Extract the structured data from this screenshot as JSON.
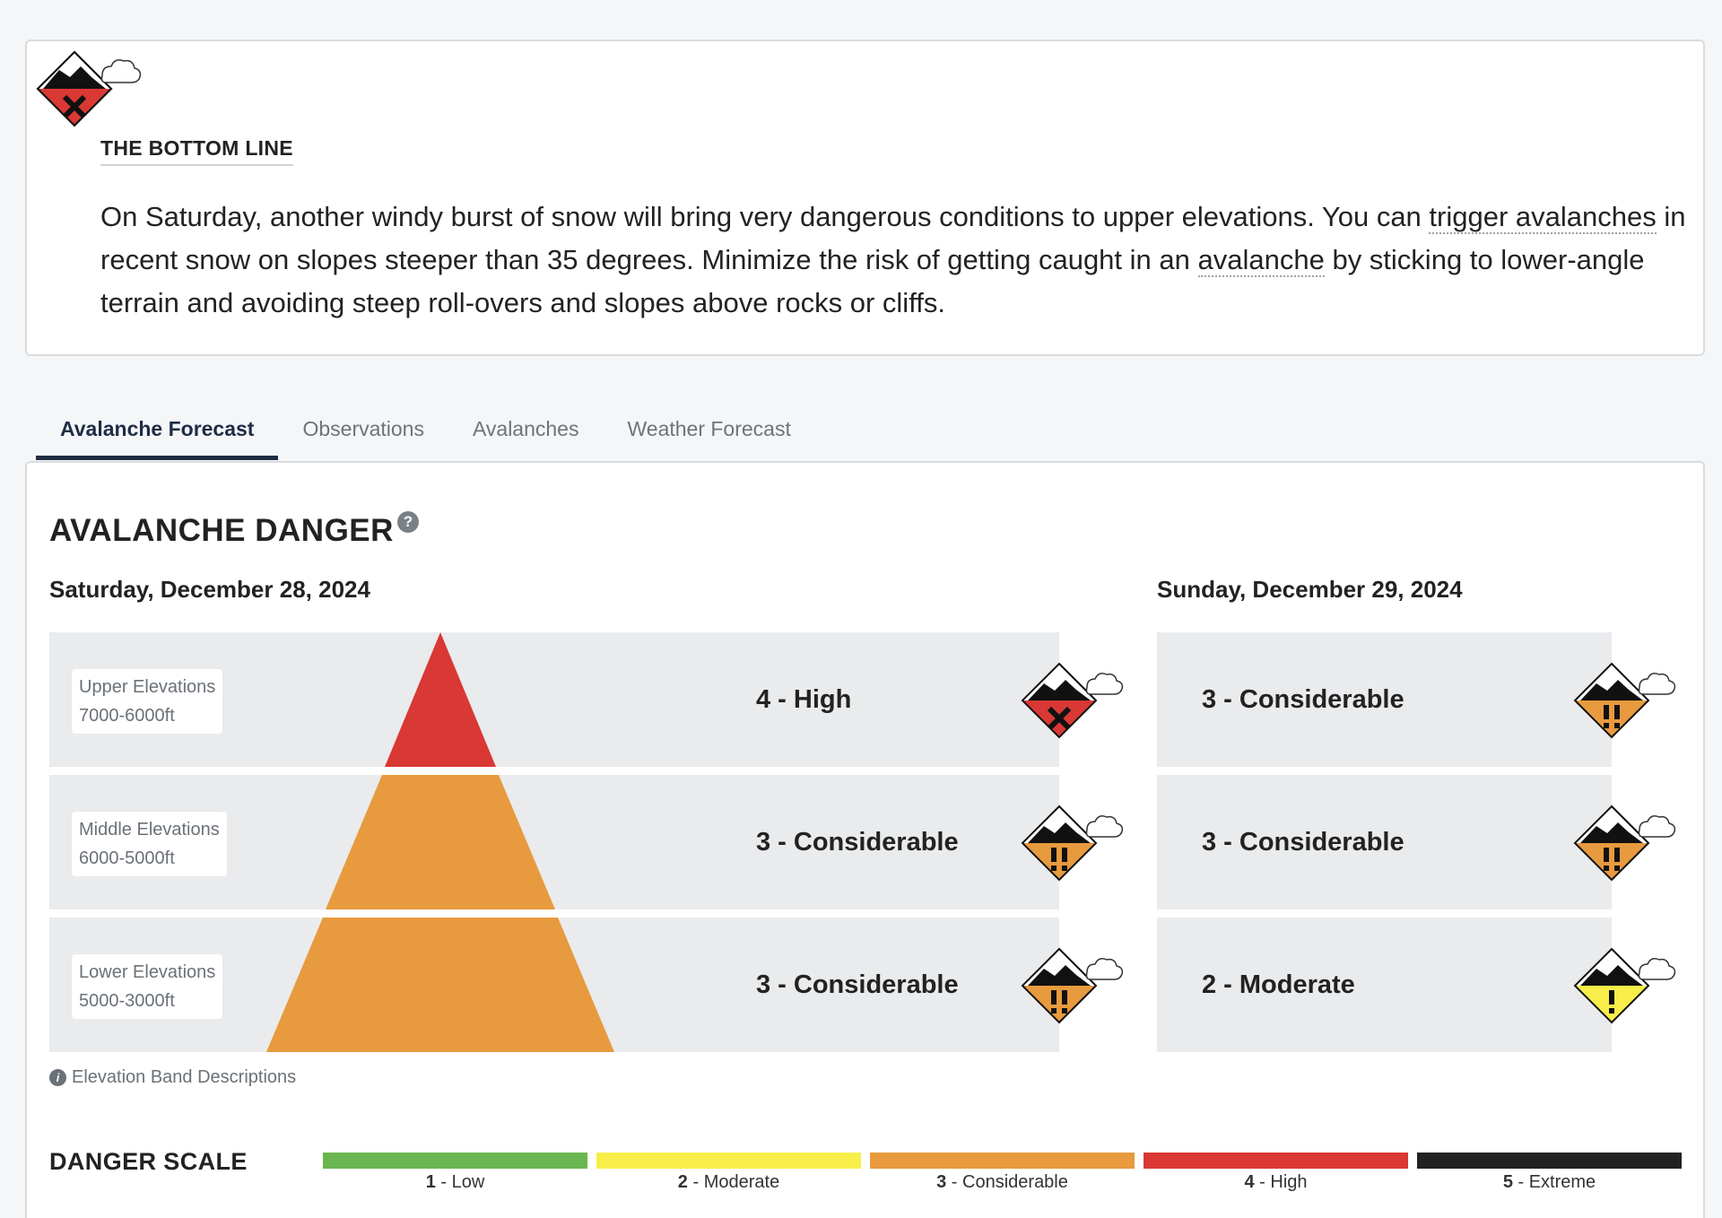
{
  "bottom_line": {
    "heading": "THE BOTTOM LINE",
    "text_1": "On Saturday, another windy burst of snow will bring very dangerous conditions to upper elevations. You can ",
    "link_1": "trigger avalanches",
    "text_2": " in recent snow on slopes steeper than 35 degrees. Minimize the risk of getting caught in an ",
    "link_2": "avalanche",
    "text_3": " by sticking to lower-angle terrain and avoiding steep roll-overs and slopes above rocks or cliffs."
  },
  "tabs": [
    {
      "label": "Avalanche Forecast",
      "active": true
    },
    {
      "label": "Observations"
    },
    {
      "label": "Avalanches"
    },
    {
      "label": "Weather Forecast"
    }
  ],
  "danger": {
    "title": "AVALANCHE DANGER",
    "help_glyph": "?",
    "days": [
      {
        "date": "Saturday, December 28, 2024",
        "bands": [
          {
            "name": "Upper Elevations",
            "range": "7000-6000ft",
            "rating": "4 - High",
            "icon": "danger-high-icon"
          },
          {
            "name": "Middle Elevations",
            "range": "6000-5000ft",
            "rating": "3 - Considerable",
            "icon": "danger-considerable-icon"
          },
          {
            "name": "Lower Elevations",
            "range": "5000-3000ft",
            "rating": "3 - Considerable",
            "icon": "danger-considerable-icon"
          }
        ]
      },
      {
        "date": "Sunday, December 29, 2024",
        "bands": [
          {
            "rating": "3 - Considerable",
            "icon": "danger-considerable-icon"
          },
          {
            "rating": "3 - Considerable",
            "icon": "danger-considerable-icon"
          },
          {
            "rating": "2 - Moderate",
            "icon": "danger-moderate-icon"
          }
        ]
      }
    ],
    "elevation_link": "Elevation Band Descriptions"
  },
  "scale": {
    "title": "DANGER SCALE",
    "levels": [
      {
        "num": "1",
        "name": " - Low",
        "color": "#6ab651"
      },
      {
        "num": "2",
        "name": " - Moderate",
        "color": "#f7ee4a"
      },
      {
        "num": "3",
        "name": " - Considerable",
        "color": "#e89a3e"
      },
      {
        "num": "4",
        "name": " - High",
        "color": "#d93834"
      },
      {
        "num": "5",
        "name": " - Extreme",
        "color": "#222222"
      }
    ]
  },
  "colors": {
    "high": "#d93834",
    "considerable": "#e89a3e",
    "moderate": "#f7ee4a",
    "accent": "#1f2d45"
  }
}
